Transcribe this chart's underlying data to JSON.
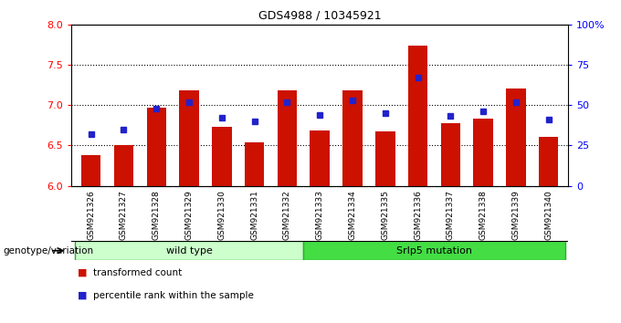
{
  "title": "GDS4988 / 10345921",
  "categories": [
    "GSM921326",
    "GSM921327",
    "GSM921328",
    "GSM921329",
    "GSM921330",
    "GSM921331",
    "GSM921332",
    "GSM921333",
    "GSM921334",
    "GSM921335",
    "GSM921336",
    "GSM921337",
    "GSM921338",
    "GSM921339",
    "GSM921340"
  ],
  "red_values": [
    6.38,
    6.5,
    6.97,
    7.18,
    6.73,
    6.54,
    7.18,
    6.68,
    7.18,
    6.67,
    7.73,
    6.77,
    6.83,
    7.2,
    6.6
  ],
  "blue_values_pct": [
    32,
    35,
    48,
    52,
    42,
    40,
    52,
    44,
    53,
    45,
    67,
    43,
    46,
    52,
    41
  ],
  "ylim_left": [
    6,
    8
  ],
  "ylim_right": [
    0,
    100
  ],
  "yticks_left": [
    6,
    6.5,
    7,
    7.5,
    8
  ],
  "yticks_right": [
    0,
    25,
    50,
    75,
    100
  ],
  "ytick_labels_right": [
    "0",
    "25",
    "50",
    "75",
    "100%"
  ],
  "bar_color": "#cc1100",
  "dot_color": "#2222cc",
  "background_color": "#ffffff",
  "plot_bg": "#ffffff",
  "group1_label": "wild type",
  "group2_label": "Srlp5 mutation",
  "legend1": "transformed count",
  "legend2": "percentile rank within the sample",
  "genotype_label": "genotype/variation",
  "group1_color": "#ccffcc",
  "group2_color": "#44dd44",
  "xticklabel_bg": "#cccccc",
  "grid_yticks": [
    6.5,
    7.0,
    7.5
  ]
}
